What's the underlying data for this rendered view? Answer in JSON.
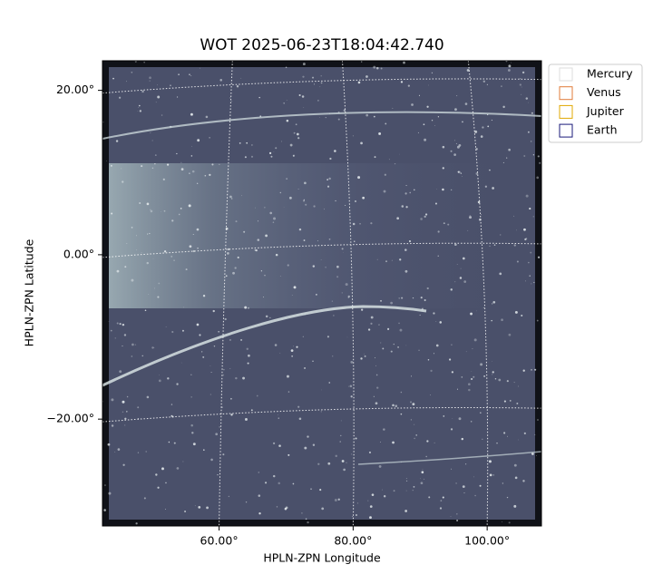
{
  "chart_data": {
    "type": "image",
    "title": "WOT 2025-06-23T18:04:42.740",
    "xlabel": "HPLN-ZPN Longitude",
    "ylabel": "HPLN-ZPN Latitude",
    "xlim": [
      42.6,
      108.1
    ],
    "ylim": [
      -33.0,
      23.6
    ],
    "xticks": [
      {
        "value": 60,
        "label": "60.00°"
      },
      {
        "value": 80,
        "label": "80.00°"
      },
      {
        "value": 100,
        "label": "100.00°"
      }
    ],
    "yticks": [
      {
        "value": -20,
        "label": "−20.00°"
      },
      {
        "value": 0,
        "label": "0.00°"
      },
      {
        "value": 20,
        "label": "20.00°"
      }
    ],
    "grid": true,
    "legend": "upper right",
    "series": [
      {
        "name": "Mercury",
        "color": "#dddddd"
      },
      {
        "name": "Venus",
        "color": "#e07b39"
      },
      {
        "name": "Jupiter",
        "color": "#e0a800"
      },
      {
        "name": "Earth",
        "color": "#1a1a7a"
      }
    ]
  }
}
